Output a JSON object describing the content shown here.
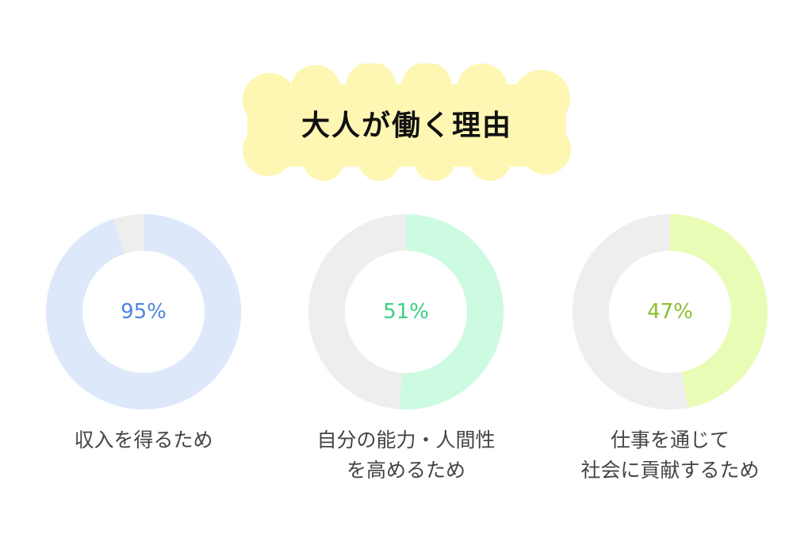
{
  "title": "大人が働く理由",
  "colors": {
    "title_bg": "#fef7b3",
    "track": "#eeeeee"
  },
  "chart_data": {
    "type": "pie",
    "variant": "donut",
    "title": "大人が働く理由",
    "items": [
      {
        "label_lines": [
          "収入を得るため"
        ],
        "value": 95,
        "display": "95%",
        "fill_color": "#dde8fb",
        "text_color": "#4e84e0"
      },
      {
        "label_lines": [
          "自分の能力・人間性",
          "を高めるため"
        ],
        "value": 51,
        "display": "51%",
        "fill_color": "#ccfbe2",
        "text_color": "#3ccf82"
      },
      {
        "label_lines": [
          "仕事を通じて",
          "社会に貢献するため"
        ],
        "value": 47,
        "display": "47%",
        "fill_color": "#e9fcb6",
        "text_color": "#8abf2c"
      }
    ]
  }
}
